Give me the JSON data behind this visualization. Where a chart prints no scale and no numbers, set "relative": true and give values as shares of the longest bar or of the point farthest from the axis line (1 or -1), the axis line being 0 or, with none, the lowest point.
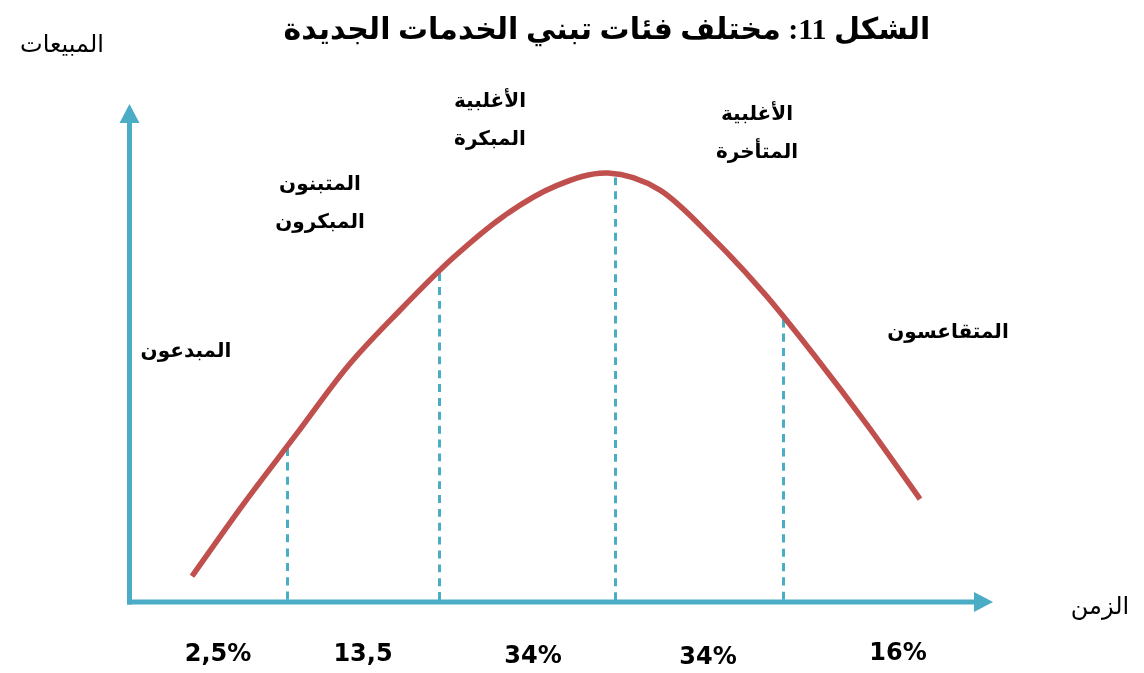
{
  "chart_data": {
    "type": "line",
    "title": "الشكل 11: مختلف فئات تبني الخدمات الجديدة",
    "relative": true,
    "categories": [
      null,
      null,
      null,
      null,
      null,
      null,
      null,
      null,
      null,
      null,
      null,
      null,
      null,
      null,
      null
    ],
    "series": [
      {
        "color": "#c0504d",
        "values": [
          0.06,
          0.23,
          0.39,
          0.55,
          0.68,
          0.8,
          0.9,
          0.97,
          1,
          0.96,
          0.85,
          0.72,
          0.57,
          0.41,
          0.24
        ]
      }
    ],
    "annotations": [
      "المبيعات",
      "الزمن",
      "المبدعون",
      "المتبنون\nالمبكرون",
      "الأغلبية\nالمبكرة",
      "الأغلبية\nالمتأخرة",
      "المتقاعسون",
      "2,5%",
      "13,5",
      "34%",
      "34%",
      "16%"
    ]
  }
}
